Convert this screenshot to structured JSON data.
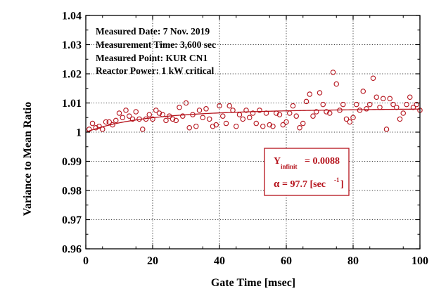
{
  "chart_data": {
    "type": "scatter",
    "xlabel": "Gate Time [msec]",
    "ylabel": "Variance to Mean Ratio",
    "xlim": [
      0,
      100
    ],
    "ylim": [
      0.96,
      1.04
    ],
    "xticks": [
      "0",
      "20",
      "40",
      "60",
      "80",
      "100"
    ],
    "yticks": [
      "0.96",
      "0.97",
      "0.98",
      "0.99",
      "1",
      "1.01",
      "1.02",
      "1.03",
      "1.04"
    ],
    "grid": "dotted",
    "annotations": [
      "Measured Date: 7 Nov. 2019",
      "Measurement Time: 3,600 sec",
      "Measured Point: KUR CN1",
      "Reactor Power: 1 kW critical"
    ],
    "fit_box": {
      "y_symbol": "Y",
      "y_subscript": "infinit",
      "y_value": "= 0.0088",
      "alpha_symbol": "α",
      "alpha_value": "= 97.7 [sec",
      "alpha_exp": "-1",
      "alpha_close": "]"
    },
    "color": "#b5121b",
    "fit_params": {
      "y_inf": 0.0088,
      "alpha": 97.7
    },
    "series": [
      {
        "marker": "open-circle",
        "x": [
          1,
          2,
          3,
          4,
          5,
          6,
          7,
          8,
          9,
          10,
          11,
          12,
          13,
          14,
          15,
          16,
          17,
          18,
          19,
          20,
          21,
          22,
          23,
          24,
          25,
          26,
          27,
          28,
          29,
          30,
          31,
          32,
          33,
          34,
          35,
          36,
          37,
          38,
          39,
          40,
          41,
          42,
          43,
          44,
          45,
          46,
          47,
          48,
          49,
          50,
          51,
          52,
          53,
          54,
          55,
          56,
          57,
          58,
          59,
          60,
          61,
          62,
          63,
          64,
          65,
          66,
          67,
          68,
          69,
          70,
          71,
          72,
          73,
          74,
          75,
          76,
          77,
          78,
          79,
          80,
          81,
          82,
          83,
          84,
          85,
          86,
          87,
          88,
          89,
          90,
          91,
          92,
          93,
          94,
          95,
          96,
          97,
          98,
          99,
          100
        ],
        "y": [
          1.001,
          1.003,
          1.0015,
          1.002,
          1.001,
          1.0035,
          1.0035,
          1.0025,
          1.004,
          1.0065,
          1.005,
          1.0075,
          1.0055,
          1.0045,
          1.007,
          1.0045,
          1.001,
          1.0045,
          1.006,
          1.0045,
          1.0075,
          1.0065,
          1.006,
          1.004,
          1.0055,
          1.0045,
          1.004,
          1.0085,
          1.0055,
          1.01,
          1.0015,
          1.006,
          1.002,
          1.0075,
          1.005,
          1.008,
          1.0045,
          1.002,
          1.0025,
          1.009,
          1.0055,
          1.003,
          1.009,
          1.0075,
          1.002,
          1.006,
          1.0045,
          1.0075,
          1.005,
          1.0065,
          1.003,
          1.0075,
          1.002,
          1.0065,
          1.0025,
          1.002,
          1.0065,
          1.006,
          1.0025,
          1.0035,
          1.0065,
          1.009,
          1.0055,
          1.0015,
          1.003,
          1.0105,
          1.013,
          1.0055,
          1.007,
          1.0135,
          1.0095,
          1.007,
          1.0065,
          1.0205,
          1.0165,
          1.0075,
          1.0095,
          1.0045,
          1.0035,
          1.005,
          1.0095,
          1.0075,
          1.014,
          1.008,
          1.0095,
          1.0185,
          1.012,
          1.0085,
          1.0115,
          1.001,
          1.0115,
          1.0095,
          1.0085,
          1.0045,
          1.0065,
          1.0095,
          1.012,
          1.0085,
          1.0095,
          1.0075
        ]
      }
    ]
  }
}
